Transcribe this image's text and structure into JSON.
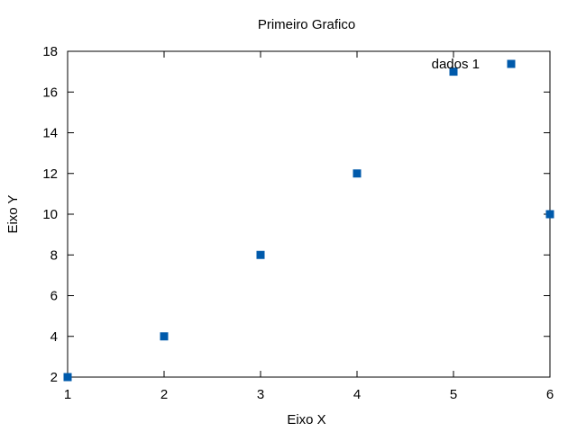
{
  "chart_data": {
    "type": "scatter",
    "title": "Primeiro Grafico",
    "xlabel": "Eixo X",
    "ylabel": "Eixo Y",
    "xlim": [
      1,
      6
    ],
    "ylim": [
      2,
      18
    ],
    "x_ticks": [
      1,
      2,
      3,
      4,
      5,
      6
    ],
    "y_ticks": [
      2,
      4,
      6,
      8,
      10,
      12,
      14,
      16,
      18
    ],
    "grid": false,
    "legend_position": "top-right",
    "series": [
      {
        "name": "dados 1",
        "color": "#005aab",
        "marker": "square",
        "x": [
          1,
          2,
          3,
          4,
          5,
          6
        ],
        "y": [
          2,
          4,
          8,
          12,
          17,
          10
        ]
      }
    ]
  }
}
